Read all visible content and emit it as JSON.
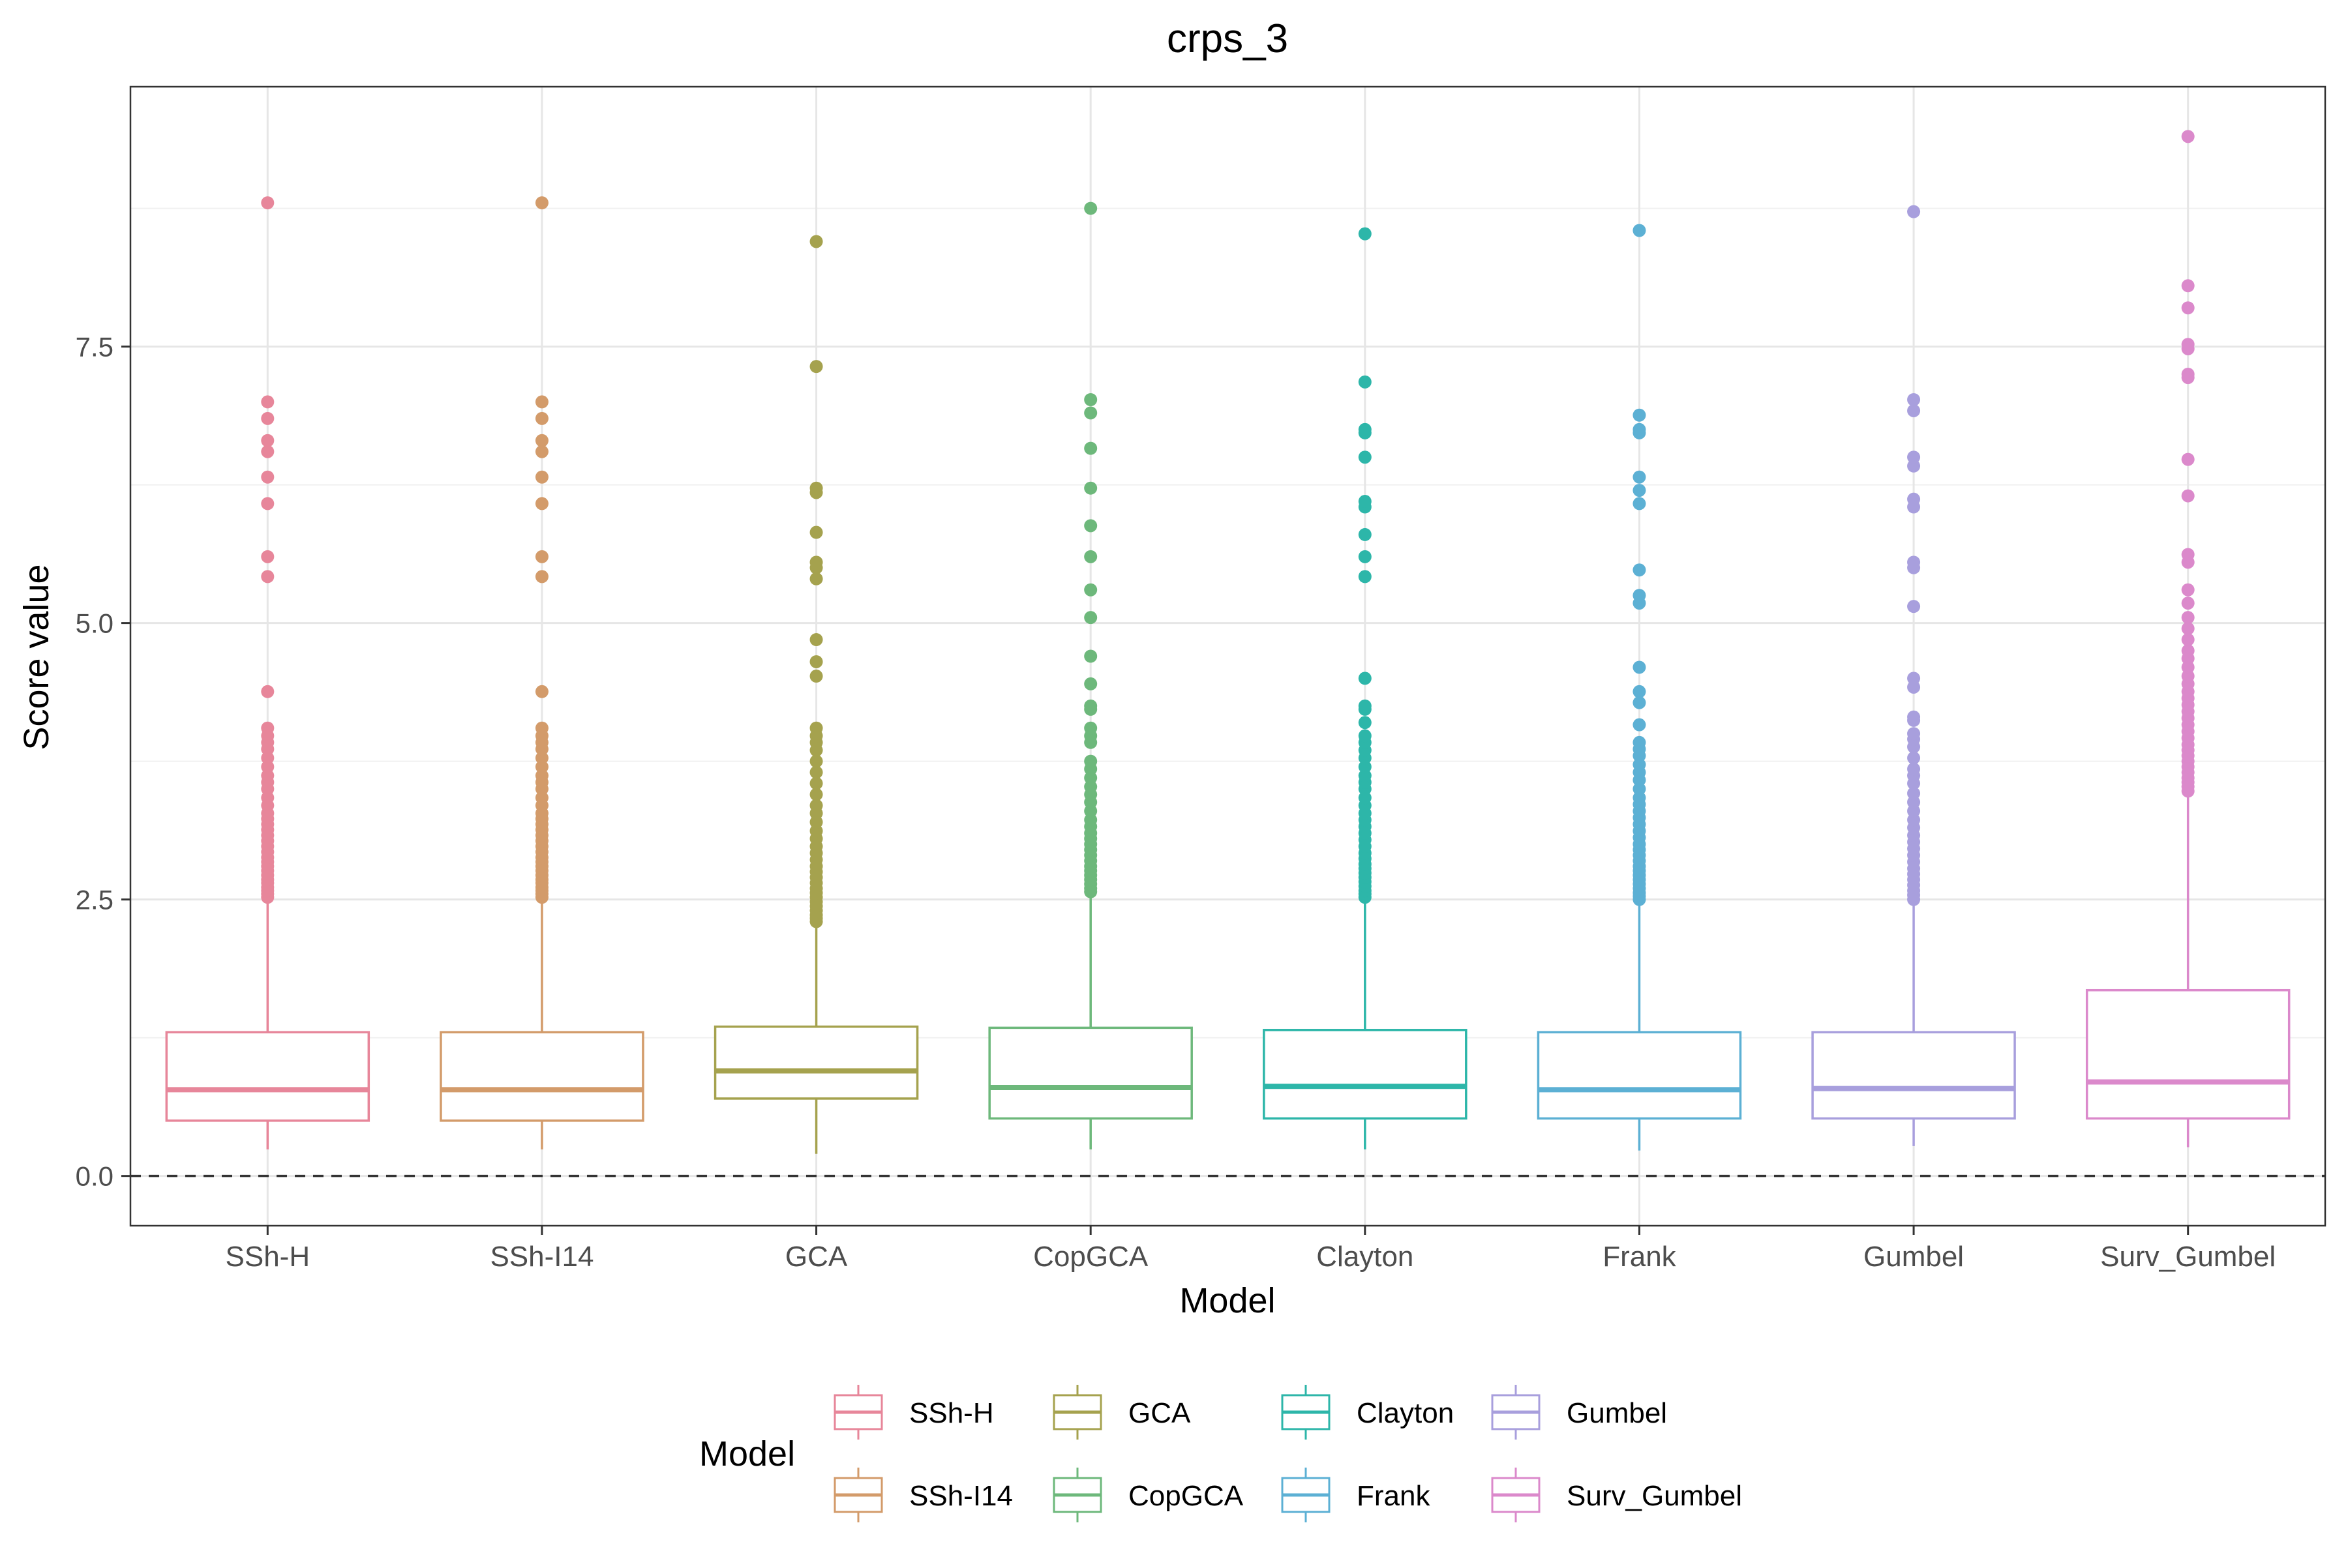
{
  "chart_data": {
    "type": "boxplot",
    "title": "crps_3",
    "xlabel": "Model",
    "ylabel": "Score value",
    "ylim": [
      -0.45,
      9.85
    ],
    "yticks": [
      0.0,
      2.5,
      5.0,
      7.5
    ],
    "ytick_labels": [
      "0.0",
      "2.5",
      "5.0",
      "7.5"
    ],
    "grid": true,
    "reference_line": {
      "y": 0,
      "style": "dashed"
    },
    "legend": {
      "title": "Model",
      "placement": "bottom"
    },
    "categories": [
      "SSh-H",
      "SSh-I14",
      "GCA",
      "CopGCA",
      "Clayton",
      "Frank",
      "Gumbel",
      "Surv_Gumbel"
    ],
    "series": [
      {
        "name": "SSh-H",
        "color": "#E7869A",
        "min": 0.24,
        "q1": 0.5,
        "median": 0.78,
        "q3": 1.3,
        "max": 2.5,
        "outliers": [
          2.52,
          2.55,
          2.58,
          2.61,
          2.65,
          2.68,
          2.72,
          2.76,
          2.8,
          2.84,
          2.88,
          2.93,
          2.98,
          3.03,
          3.08,
          3.13,
          3.18,
          3.23,
          3.28,
          3.35,
          3.42,
          3.5,
          3.56,
          3.62,
          3.7,
          3.78,
          3.86,
          3.92,
          3.98,
          4.05,
          4.38,
          5.42,
          5.6,
          6.08,
          6.32,
          6.55,
          6.65,
          6.85,
          7.0,
          8.8
        ]
      },
      {
        "name": "SSh-I14",
        "color": "#D39B6A",
        "min": 0.24,
        "q1": 0.5,
        "median": 0.78,
        "q3": 1.3,
        "max": 2.5,
        "outliers": [
          2.52,
          2.55,
          2.58,
          2.61,
          2.65,
          2.68,
          2.72,
          2.76,
          2.8,
          2.84,
          2.88,
          2.93,
          2.98,
          3.03,
          3.08,
          3.13,
          3.18,
          3.23,
          3.28,
          3.35,
          3.42,
          3.5,
          3.56,
          3.62,
          3.7,
          3.78,
          3.86,
          3.92,
          3.98,
          4.05,
          4.38,
          5.42,
          5.6,
          6.08,
          6.32,
          6.55,
          6.65,
          6.85,
          7.0,
          8.8
        ]
      },
      {
        "name": "GCA",
        "color": "#A5A24E",
        "min": 0.2,
        "q1": 0.7,
        "median": 0.95,
        "q3": 1.35,
        "max": 2.28,
        "outliers": [
          2.3,
          2.33,
          2.36,
          2.4,
          2.44,
          2.48,
          2.52,
          2.56,
          2.6,
          2.65,
          2.7,
          2.75,
          2.8,
          2.86,
          2.92,
          2.98,
          3.05,
          3.12,
          3.2,
          3.28,
          3.35,
          3.45,
          3.55,
          3.65,
          3.75,
          3.85,
          3.92,
          3.98,
          4.05,
          4.52,
          4.65,
          4.85,
          5.4,
          5.5,
          5.55,
          5.82,
          6.18,
          6.22,
          7.32,
          8.45
        ]
      },
      {
        "name": "CopGCA",
        "color": "#6DB87B",
        "min": 0.24,
        "q1": 0.52,
        "median": 0.8,
        "q3": 1.34,
        "max": 2.55,
        "outliers": [
          2.57,
          2.6,
          2.64,
          2.68,
          2.72,
          2.76,
          2.8,
          2.85,
          2.9,
          2.95,
          3.0,
          3.05,
          3.1,
          3.16,
          3.22,
          3.3,
          3.38,
          3.45,
          3.52,
          3.6,
          3.68,
          3.75,
          3.92,
          3.98,
          4.05,
          4.22,
          4.25,
          4.45,
          4.7,
          5.05,
          5.3,
          5.6,
          5.88,
          6.22,
          6.58,
          6.9,
          7.02,
          8.75
        ]
      },
      {
        "name": "Clayton",
        "color": "#2DB6A9",
        "min": 0.24,
        "q1": 0.52,
        "median": 0.81,
        "q3": 1.32,
        "max": 2.5,
        "outliers": [
          2.52,
          2.55,
          2.58,
          2.62,
          2.66,
          2.7,
          2.74,
          2.78,
          2.82,
          2.87,
          2.92,
          2.98,
          3.04,
          3.1,
          3.16,
          3.22,
          3.28,
          3.35,
          3.42,
          3.5,
          3.56,
          3.62,
          3.7,
          3.78,
          3.85,
          3.92,
          3.98,
          4.1,
          4.22,
          4.25,
          4.5,
          5.42,
          5.6,
          5.8,
          6.05,
          6.1,
          6.5,
          6.72,
          6.75,
          7.18,
          8.52
        ]
      },
      {
        "name": "Frank",
        "color": "#5CB0D4",
        "min": 0.23,
        "q1": 0.52,
        "median": 0.78,
        "q3": 1.3,
        "max": 2.48,
        "outliers": [
          2.5,
          2.53,
          2.56,
          2.6,
          2.64,
          2.68,
          2.72,
          2.76,
          2.8,
          2.85,
          2.9,
          2.95,
          3.0,
          3.06,
          3.12,
          3.18,
          3.24,
          3.3,
          3.36,
          3.42,
          3.5,
          3.58,
          3.65,
          3.72,
          3.8,
          3.86,
          3.92,
          4.08,
          4.28,
          4.38,
          4.6,
          5.18,
          5.25,
          5.48,
          6.08,
          6.2,
          6.32,
          6.72,
          6.75,
          6.88,
          8.55
        ]
      },
      {
        "name": "Gumbel",
        "color": "#A89FDD",
        "min": 0.27,
        "q1": 0.52,
        "median": 0.79,
        "q3": 1.3,
        "max": 2.48,
        "outliers": [
          2.5,
          2.54,
          2.58,
          2.63,
          2.68,
          2.73,
          2.78,
          2.84,
          2.9,
          2.96,
          3.02,
          3.08,
          3.15,
          3.22,
          3.3,
          3.38,
          3.46,
          3.55,
          3.62,
          3.68,
          3.78,
          3.88,
          3.95,
          4.0,
          4.12,
          4.15,
          4.42,
          4.5,
          5.15,
          5.5,
          5.55,
          6.05,
          6.12,
          6.42,
          6.5,
          6.92,
          7.02,
          8.72
        ]
      },
      {
        "name": "Surv_Gumbel",
        "color": "#DB89CB",
        "min": 0.26,
        "q1": 0.52,
        "median": 0.85,
        "q3": 1.68,
        "max": 3.45,
        "outliers": [
          3.48,
          3.52,
          3.56,
          3.6,
          3.65,
          3.7,
          3.75,
          3.8,
          3.85,
          3.9,
          3.96,
          4.02,
          4.08,
          4.14,
          4.2,
          4.26,
          4.32,
          4.38,
          4.45,
          4.52,
          4.6,
          4.68,
          4.75,
          4.85,
          4.95,
          5.05,
          5.18,
          5.3,
          5.55,
          5.62,
          6.15,
          6.48,
          7.22,
          7.25,
          7.48,
          7.52,
          7.85,
          8.05,
          9.4
        ]
      }
    ]
  }
}
